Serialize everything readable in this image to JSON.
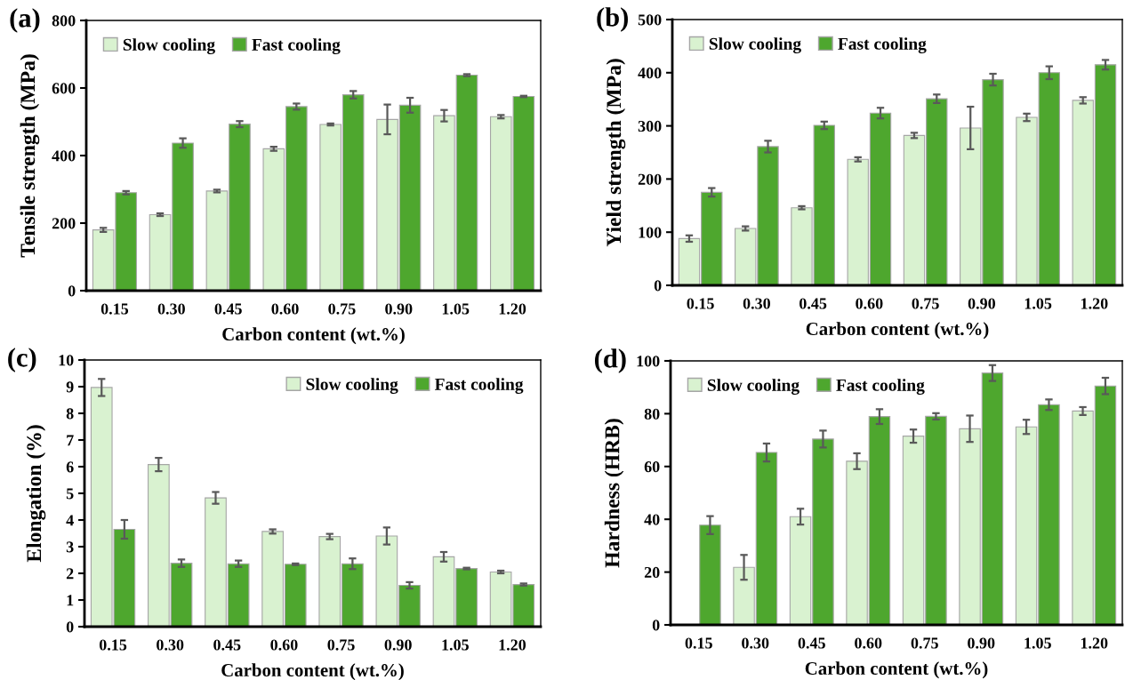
{
  "chart_data": [
    {
      "type": "bar",
      "title": "(a)",
      "xlabel": "Carbon content (wt.%)",
      "ylabel": "Tensile strength (MPa)",
      "categories": [
        "0.15",
        "0.30",
        "0.45",
        "0.60",
        "0.75",
        "0.90",
        "1.05",
        "1.20"
      ],
      "ylim": [
        0,
        800
      ],
      "yticks": [
        0,
        200,
        400,
        600,
        800
      ],
      "legend": "top left",
      "grid": false,
      "series": [
        {
          "name": "Slow cooling",
          "color": "#d9f2d0",
          "values": [
            180,
            225,
            295,
            420,
            492,
            507,
            518,
            515
          ],
          "errors": [
            6,
            4,
            4,
            6,
            3,
            44,
            17,
            5
          ]
        },
        {
          "name": "Fast cooling",
          "color": "#4ea72e",
          "values": [
            290,
            437,
            493,
            545,
            580,
            549,
            638,
            575
          ],
          "errors": [
            5,
            14,
            9,
            9,
            11,
            22,
            3,
            2
          ]
        }
      ]
    },
    {
      "type": "bar",
      "title": "(b)",
      "xlabel": "Carbon content (wt.%)",
      "ylabel": "Yield strength (MPa)",
      "categories": [
        "0.15",
        "0.30",
        "0.45",
        "0.60",
        "0.75",
        "0.90",
        "1.05",
        "1.20"
      ],
      "ylim": [
        0,
        500
      ],
      "yticks": [
        0,
        100,
        200,
        300,
        400,
        500
      ],
      "legend": "top left",
      "grid": false,
      "series": [
        {
          "name": "Slow cooling",
          "color": "#d9f2d0",
          "values": [
            88,
            107,
            146,
            237,
            282,
            296,
            316,
            348
          ],
          "errors": [
            6,
            4,
            3,
            4,
            5,
            40,
            7,
            6
          ]
        },
        {
          "name": "Fast cooling",
          "color": "#4ea72e",
          "values": [
            175,
            261,
            301,
            324,
            351,
            387,
            400,
            415
          ],
          "errors": [
            8,
            11,
            7,
            10,
            8,
            11,
            12,
            9
          ]
        }
      ]
    },
    {
      "type": "bar",
      "title": "(c)",
      "xlabel": "Carbon content (wt.%)",
      "ylabel": "Elongation (%)",
      "categories": [
        "0.15",
        "0.30",
        "0.45",
        "0.60",
        "0.75",
        "0.90",
        "1.05",
        "1.20"
      ],
      "ylim": [
        0,
        10
      ],
      "yticks": [
        0,
        1,
        2,
        3,
        4,
        5,
        6,
        7,
        8,
        9,
        10
      ],
      "legend": "top right",
      "grid": false,
      "series": [
        {
          "name": "Slow cooling",
          "color": "#d9f2d0",
          "values": [
            8.97,
            6.08,
            4.83,
            3.57,
            3.38,
            3.4,
            2.62,
            2.05
          ],
          "errors": [
            0.32,
            0.25,
            0.22,
            0.08,
            0.1,
            0.32,
            0.18,
            0.05
          ]
        },
        {
          "name": "Fast cooling",
          "color": "#4ea72e",
          "values": [
            3.65,
            2.38,
            2.36,
            2.34,
            2.36,
            1.55,
            2.18,
            1.58
          ],
          "errors": [
            0.35,
            0.14,
            0.12,
            0.03,
            0.2,
            0.12,
            0.03,
            0.04
          ]
        }
      ]
    },
    {
      "type": "bar",
      "title": "(d)",
      "xlabel": "Carbon content (wt.%)",
      "ylabel": "Hardness (HRB)",
      "categories": [
        "0.15",
        "0.30",
        "0.45",
        "0.60",
        "0.75",
        "0.90",
        "1.05",
        "1.20"
      ],
      "ylim": [
        0,
        100
      ],
      "yticks": [
        0,
        20,
        40,
        60,
        80,
        100
      ],
      "legend": "top left",
      "grid": false,
      "series": [
        {
          "name": "Slow cooling",
          "color": "#d9f2d0",
          "values": [
            0,
            21.8,
            41,
            62,
            71.5,
            74.3,
            75,
            81
          ],
          "errors": [
            null,
            4.7,
            3,
            3,
            2.5,
            5,
            2.7,
            1.5
          ]
        },
        {
          "name": "Fast cooling",
          "color": "#4ea72e",
          "values": [
            37.8,
            65.3,
            70.4,
            78.9,
            79,
            95.4,
            83.4,
            90.5
          ],
          "errors": [
            3.4,
            3.4,
            3.2,
            2.8,
            1.2,
            3,
            2,
            3.1
          ]
        }
      ]
    }
  ]
}
